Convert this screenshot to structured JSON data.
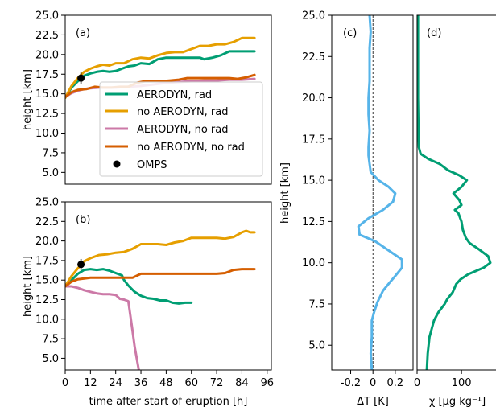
{
  "chart_data": [
    {
      "panel_label": "(a)",
      "type": "line",
      "xlabel": "",
      "ylabel": "height [km]",
      "xlim": [
        0,
        98
      ],
      "ylim": [
        3.5,
        25
      ],
      "xticks": [],
      "yticks": [
        "5.0",
        "7.5",
        "10.0",
        "12.5",
        "15.0",
        "17.5",
        "20.0",
        "22.5",
        "25.0"
      ],
      "legend": {
        "position": "center-right"
      },
      "series": [
        {
          "name": "AERODYN, rad",
          "color": "#009e73",
          "x": [
            0,
            3,
            6,
            8,
            9,
            12,
            15,
            18,
            21,
            24,
            27,
            30,
            33,
            36,
            40,
            44,
            48,
            52,
            56,
            60,
            64,
            66,
            70,
            74,
            78,
            82,
            86,
            90
          ],
          "y": [
            14.5,
            15.8,
            16.6,
            17.0,
            17.3,
            17.6,
            17.8,
            17.9,
            17.8,
            17.9,
            18.2,
            18.5,
            18.6,
            18.9,
            18.8,
            19.4,
            19.6,
            19.6,
            19.6,
            19.6,
            19.6,
            19.4,
            19.6,
            19.9,
            20.4,
            20.4,
            20.4,
            20.4
          ]
        },
        {
          "name": "no AERODYN, rad",
          "color": "#e69f00",
          "x": [
            0,
            3,
            6,
            9,
            12,
            15,
            18,
            21,
            24,
            28,
            32,
            36,
            40,
            44,
            48,
            52,
            56,
            60,
            64,
            68,
            72,
            76,
            80,
            84,
            88,
            90
          ],
          "y": [
            14.5,
            16.0,
            17.0,
            17.8,
            18.2,
            18.5,
            18.7,
            18.6,
            18.9,
            18.9,
            19.4,
            19.6,
            19.5,
            19.9,
            20.2,
            20.3,
            20.3,
            20.7,
            21.1,
            21.1,
            21.3,
            21.3,
            21.6,
            22.1,
            22.1,
            22.1
          ]
        },
        {
          "name": "AERODYN, no rad",
          "color": "#cc79a7",
          "x": [
            0,
            3,
            6,
            9,
            12,
            16,
            20,
            24,
            30,
            36,
            42,
            48,
            54,
            60,
            66,
            72,
            78,
            84,
            90
          ],
          "y": [
            14.6,
            15.1,
            15.4,
            15.6,
            15.7,
            15.8,
            15.8,
            15.8,
            15.9,
            16.0,
            16.2,
            16.4,
            16.5,
            16.6,
            16.7,
            16.7,
            16.8,
            16.8,
            16.9
          ]
        },
        {
          "name": "no AERODYN, no rad",
          "color": "#d55e00",
          "x": [
            0,
            3,
            6,
            10,
            14,
            18,
            22,
            26,
            30,
            34,
            38,
            42,
            46,
            50,
            54,
            58,
            62,
            66,
            70,
            74,
            78,
            82,
            86,
            90
          ],
          "y": [
            14.6,
            15.2,
            15.5,
            15.6,
            15.9,
            15.8,
            15.8,
            15.9,
            15.9,
            16.4,
            16.6,
            16.6,
            16.6,
            16.7,
            16.8,
            17.0,
            17.0,
            17.0,
            17.0,
            17.0,
            17.0,
            16.9,
            17.1,
            17.4
          ]
        },
        {
          "name": "OMPS",
          "color": "#000000",
          "kind": "errorbar",
          "x": [
            7.5
          ],
          "y": [
            17.0
          ],
          "yerr": [
            0.7
          ]
        }
      ]
    },
    {
      "panel_label": "(b)",
      "type": "line",
      "xlabel": "time after start of eruption [h]",
      "ylabel": "height [km]",
      "xlim": [
        0,
        98
      ],
      "ylim": [
        3.5,
        25
      ],
      "xticks": [
        "0",
        "12",
        "24",
        "36",
        "48",
        "60",
        "72",
        "84",
        "96"
      ],
      "yticks": [
        "5.0",
        "7.5",
        "10.0",
        "12.5",
        "15.0",
        "17.5",
        "20.0",
        "22.5",
        "25.0"
      ],
      "series": [
        {
          "name": "AERODYN, rad",
          "color": "#009e73",
          "x": [
            0,
            3,
            6,
            9,
            12,
            15,
            18,
            21,
            24,
            27,
            28,
            30,
            33,
            36,
            39,
            42,
            45,
            48,
            51,
            54,
            57,
            60
          ],
          "y": [
            14.2,
            15.0,
            15.8,
            16.3,
            16.4,
            16.3,
            16.4,
            16.2,
            15.9,
            15.6,
            15.0,
            14.3,
            13.5,
            13.0,
            12.7,
            12.6,
            12.4,
            12.4,
            12.1,
            12.0,
            12.1,
            12.1
          ]
        },
        {
          "name": "no AERODYN, rad",
          "color": "#e69f00",
          "x": [
            0,
            3,
            6,
            9,
            12,
            16,
            20,
            24,
            28,
            32,
            36,
            40,
            44,
            48,
            52,
            56,
            60,
            64,
            68,
            72,
            76,
            80,
            84,
            86,
            88,
            90
          ],
          "y": [
            14.2,
            15.5,
            16.5,
            17.4,
            17.8,
            18.2,
            18.3,
            18.5,
            18.6,
            19.0,
            19.6,
            19.6,
            19.6,
            19.5,
            19.8,
            20.0,
            20.4,
            20.4,
            20.4,
            20.4,
            20.3,
            20.5,
            21.1,
            21.3,
            21.1,
            21.1
          ]
        },
        {
          "name": "AERODYN, no rad",
          "color": "#cc79a7",
          "x": [
            0,
            3,
            6,
            9,
            12,
            15,
            18,
            21,
            24,
            26,
            28,
            30,
            32,
            33,
            34,
            35
          ],
          "y": [
            14.2,
            14.2,
            14.0,
            13.7,
            13.5,
            13.3,
            13.2,
            13.2,
            13.1,
            12.6,
            12.5,
            12.3,
            8.5,
            6.5,
            5.0,
            3.5
          ]
        },
        {
          "name": "no AERODYN, no rad",
          "color": "#d55e00",
          "x": [
            0,
            3,
            6,
            9,
            12,
            16,
            20,
            24,
            28,
            32,
            36,
            40,
            44,
            48,
            52,
            56,
            60,
            64,
            68,
            72,
            76,
            80,
            84,
            88,
            90
          ],
          "y": [
            14.2,
            14.8,
            15.1,
            15.2,
            15.3,
            15.3,
            15.3,
            15.3,
            15.3,
            15.3,
            15.8,
            15.8,
            15.8,
            15.8,
            15.8,
            15.8,
            15.8,
            15.8,
            15.8,
            15.8,
            15.9,
            16.3,
            16.4,
            16.4,
            16.4
          ]
        },
        {
          "name": "OMPS",
          "color": "#000000",
          "kind": "errorbar",
          "x": [
            7.5
          ],
          "y": [
            17.0
          ],
          "yerr": [
            0.7
          ]
        }
      ]
    },
    {
      "panel_label": "(c)",
      "type": "line",
      "xlabel": "ΔT [K]",
      "ylabel": "height [km]",
      "xlim": [
        -0.37,
        0.36
      ],
      "ylim": [
        3.5,
        25
      ],
      "xticks": [
        "-0.2",
        "0",
        "0.2"
      ],
      "yticks": [
        "5.0",
        "7.5",
        "10.0",
        "12.5",
        "15.0",
        "17.5",
        "20.0",
        "22.5",
        "25.0"
      ],
      "reference_line": 0,
      "series": [
        {
          "name": "",
          "color": "#56b4e9",
          "y": [
            3.5,
            4.5,
            5.5,
            6.5,
            7.0,
            7.6,
            8.3,
            8.8,
            9.2,
            9.7,
            10.2,
            10.7,
            11.3,
            11.7,
            12.2,
            12.7,
            13.2,
            13.7,
            14.2,
            14.6,
            15.0,
            15.5,
            16.0,
            16.5,
            17.0,
            18.0,
            19.0,
            20.0,
            21.0,
            22.0,
            23.0,
            24.0,
            25.0
          ],
          "x": [
            -0.01,
            -0.02,
            -0.01,
            -0.01,
            0.01,
            0.04,
            0.09,
            0.15,
            0.2,
            0.26,
            0.26,
            0.15,
            0.02,
            -0.12,
            -0.13,
            -0.04,
            0.09,
            0.18,
            0.2,
            0.14,
            0.05,
            -0.02,
            -0.03,
            -0.04,
            -0.04,
            -0.03,
            -0.04,
            -0.04,
            -0.03,
            -0.03,
            -0.03,
            -0.02,
            -0.03
          ]
        }
      ]
    },
    {
      "panel_label": "(d)",
      "type": "line",
      "xlabel": "χ̄ [μg kg⁻¹]",
      "ylabel": "",
      "xlim": [
        0,
        185
      ],
      "ylim": [
        3.5,
        25
      ],
      "xticks": [
        "0",
        "100"
      ],
      "yticks": [],
      "series": [
        {
          "name": "",
          "color": "#009e73",
          "y": [
            3.5,
            4.5,
            5.5,
            6.5,
            7.0,
            7.5,
            7.8,
            8.2,
            8.7,
            9.0,
            9.3,
            9.7,
            10.0,
            10.4,
            10.8,
            11.2,
            11.5,
            12.0,
            12.5,
            13.0,
            13.2,
            13.5,
            13.8,
            14.2,
            14.6,
            15.0,
            15.3,
            15.6,
            16.0,
            16.3,
            16.6,
            17.0,
            18.0,
            20.0,
            22.0,
            25.0
          ],
          "x": [
            22,
            24,
            28,
            38,
            48,
            62,
            68,
            80,
            88,
            98,
            115,
            150,
            165,
            160,
            140,
            118,
            110,
            103,
            100,
            93,
            85,
            100,
            95,
            82,
            100,
            112,
            95,
            70,
            50,
            25,
            8,
            4,
            3,
            2,
            2,
            2
          ]
        }
      ]
    }
  ]
}
